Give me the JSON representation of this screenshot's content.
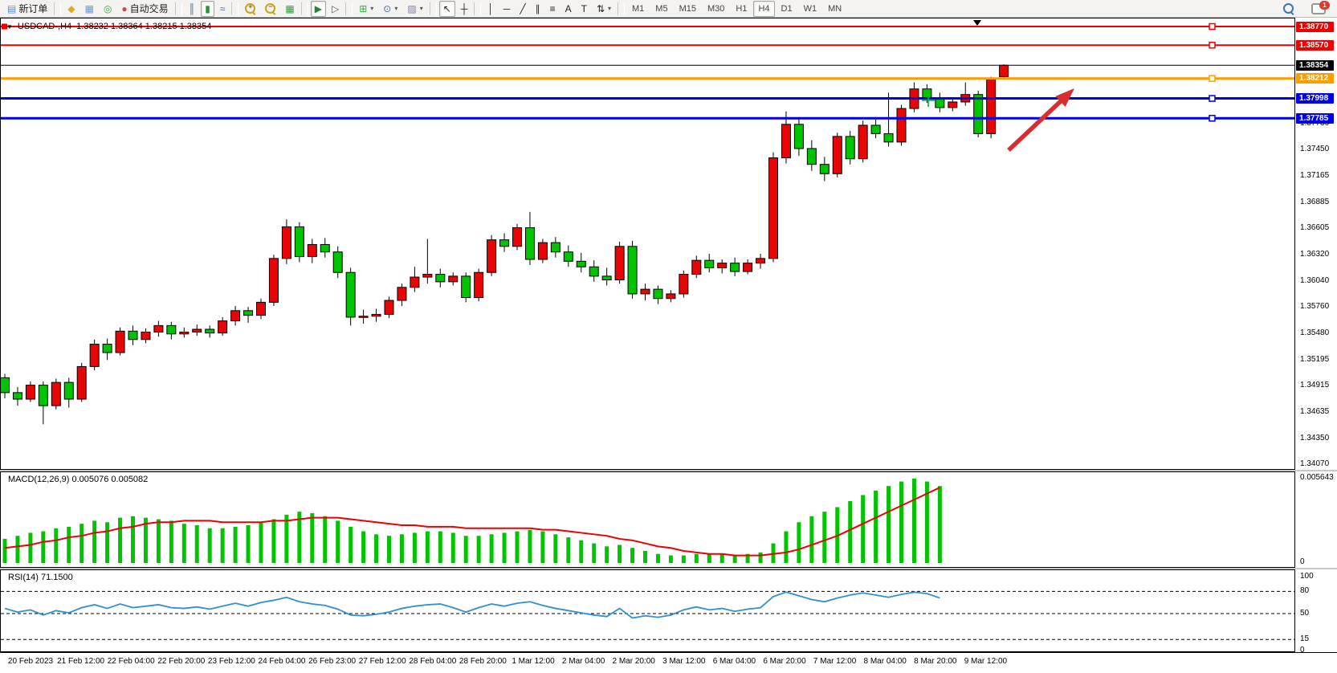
{
  "toolbar": {
    "groups": [
      [
        {
          "name": "new-order",
          "glyph": "▤",
          "color": "#5b8dc8",
          "label": "新订单"
        }
      ],
      [
        {
          "name": "market-watch",
          "glyph": "◆",
          "color": "#dcaa1e"
        },
        {
          "name": "data-window",
          "glyph": "▦",
          "color": "#6f9bd2"
        },
        {
          "name": "signals",
          "glyph": "◎",
          "color": "#2fae42"
        },
        {
          "name": "autotrading",
          "glyph": "●",
          "color": "#cf4a3c",
          "label": "自动交易"
        }
      ],
      [
        {
          "name": "bar-chart",
          "glyph": "║",
          "color": "#3a6ea8"
        },
        {
          "name": "candlestick-chart",
          "glyph": "▮",
          "color": "#2f8f3a",
          "active": true
        },
        {
          "name": "line-chart",
          "glyph": "≈",
          "color": "#3a6ea8"
        }
      ],
      [
        {
          "name": "zoom-in",
          "kind": "lens",
          "sign": "+"
        },
        {
          "name": "zoom-out",
          "kind": "lens",
          "sign": "−"
        },
        {
          "name": "tile-windows",
          "glyph": "▦",
          "color": "#2f9e3f"
        }
      ],
      [
        {
          "name": "auto-scroll",
          "glyph": "▶",
          "color": "#2f7d3a",
          "active": true
        },
        {
          "name": "chart-shift",
          "glyph": "▷",
          "color": "#555555"
        }
      ],
      [
        {
          "name": "add-indicator",
          "glyph": "⊞",
          "color": "#2fae42",
          "caret": true
        },
        {
          "name": "periods",
          "glyph": "⊙",
          "color": "#3a6ea8",
          "caret": true
        },
        {
          "name": "templates",
          "glyph": "▨",
          "color": "#8a77b0",
          "caret": true
        }
      ],
      [
        {
          "name": "cursor",
          "glyph": "↖",
          "color": "#222222",
          "active": true
        },
        {
          "name": "crosshair",
          "glyph": "┼",
          "color": "#222222"
        }
      ],
      [
        {
          "name": "vertical-line",
          "glyph": "│",
          "color": "#222222"
        },
        {
          "name": "horizontal-line",
          "glyph": "─",
          "color": "#222222"
        },
        {
          "name": "trendline",
          "glyph": "╱",
          "color": "#222222"
        },
        {
          "name": "equidistant-channel",
          "glyph": "∥",
          "color": "#222222"
        },
        {
          "name": "fibonacci",
          "glyph": "≡",
          "color": "#222222"
        },
        {
          "name": "text",
          "glyph": "A",
          "color": "#222222"
        },
        {
          "name": "text-label",
          "glyph": "T",
          "color": "#222222"
        },
        {
          "name": "arrows-tool",
          "glyph": "⇅",
          "color": "#222222",
          "caret": true
        }
      ]
    ],
    "timeframes": [
      "M1",
      "M5",
      "M15",
      "M30",
      "H1",
      "H4",
      "D1",
      "W1",
      "MN"
    ],
    "active_timeframe": "H4",
    "right": [
      {
        "name": "search",
        "kind": "search"
      },
      {
        "name": "notifications",
        "kind": "chat",
        "badge": "1"
      }
    ]
  },
  "chart_data": {
    "type": "candlestick",
    "symbol_title": "USDCAD-,H4",
    "ohlc_title": "1.38232 1.38364 1.38215 1.38354",
    "bull_color": "#e80505",
    "bear_color": "#00c400",
    "candles": [
      [
        1.35,
        1.3504,
        1.3478,
        1.3484
      ],
      [
        1.3484,
        1.349,
        1.347,
        1.3477
      ],
      [
        1.3477,
        1.3496,
        1.3474,
        1.3492
      ],
      [
        1.3492,
        1.3496,
        1.345,
        1.347
      ],
      [
        1.347,
        1.3499,
        1.3466,
        1.3495
      ],
      [
        1.3495,
        1.35,
        1.3468,
        1.3477
      ],
      [
        1.3477,
        1.3516,
        1.3474,
        1.3512
      ],
      [
        1.3512,
        1.3541,
        1.3508,
        1.3536
      ],
      [
        1.3536,
        1.3542,
        1.3519,
        1.3527
      ],
      [
        1.3527,
        1.3554,
        1.3524,
        1.355
      ],
      [
        1.355,
        1.3556,
        1.3535,
        1.3541
      ],
      [
        1.3541,
        1.3553,
        1.3537,
        1.3549
      ],
      [
        1.3549,
        1.3561,
        1.3544,
        1.3556
      ],
      [
        1.3556,
        1.356,
        1.3541,
        1.3547
      ],
      [
        1.3547,
        1.3554,
        1.3543,
        1.3549
      ],
      [
        1.3549,
        1.3557,
        1.3545,
        1.3552
      ],
      [
        1.3552,
        1.3556,
        1.3543,
        1.3548
      ],
      [
        1.3548,
        1.3565,
        1.3545,
        1.3561
      ],
      [
        1.3561,
        1.3577,
        1.3556,
        1.3572
      ],
      [
        1.3572,
        1.3576,
        1.3559,
        1.3567
      ],
      [
        1.3567,
        1.3585,
        1.3563,
        1.3581
      ],
      [
        1.3581,
        1.3632,
        1.3577,
        1.3628
      ],
      [
        1.3628,
        1.367,
        1.3622,
        1.3662
      ],
      [
        1.3662,
        1.3667,
        1.3624,
        1.363
      ],
      [
        1.363,
        1.3649,
        1.3623,
        1.3643
      ],
      [
        1.3643,
        1.365,
        1.3629,
        1.3635
      ],
      [
        1.3635,
        1.3641,
        1.3607,
        1.3613
      ],
      [
        1.3613,
        1.3618,
        1.3556,
        1.3565
      ],
      [
        1.3565,
        1.3573,
        1.3558,
        1.3566
      ],
      [
        1.3566,
        1.3574,
        1.356,
        1.3568
      ],
      [
        1.3568,
        1.3587,
        1.3564,
        1.3583
      ],
      [
        1.3583,
        1.3601,
        1.3577,
        1.3597
      ],
      [
        1.3597,
        1.3619,
        1.3592,
        1.3608
      ],
      [
        1.3608,
        1.3649,
        1.3601,
        1.3611
      ],
      [
        1.3611,
        1.3617,
        1.3597,
        1.3603
      ],
      [
        1.3603,
        1.3613,
        1.3599,
        1.3609
      ],
      [
        1.3609,
        1.3613,
        1.3581,
        1.3586
      ],
      [
        1.3586,
        1.3617,
        1.3582,
        1.3613
      ],
      [
        1.3613,
        1.3653,
        1.3609,
        1.3648
      ],
      [
        1.3648,
        1.3655,
        1.3635,
        1.3641
      ],
      [
        1.3641,
        1.3665,
        1.3637,
        1.3661
      ],
      [
        1.3661,
        1.3678,
        1.3621,
        1.3627
      ],
      [
        1.3627,
        1.3649,
        1.3623,
        1.3645
      ],
      [
        1.3645,
        1.3651,
        1.3629,
        1.3635
      ],
      [
        1.3635,
        1.3642,
        1.3619,
        1.3625
      ],
      [
        1.3625,
        1.3634,
        1.3613,
        1.3619
      ],
      [
        1.3619,
        1.3626,
        1.3603,
        1.3609
      ],
      [
        1.3609,
        1.3618,
        1.3599,
        1.3605
      ],
      [
        1.3605,
        1.3646,
        1.3601,
        1.3641
      ],
      [
        1.3641,
        1.3647,
        1.3585,
        1.359
      ],
      [
        1.359,
        1.3601,
        1.3583,
        1.3595
      ],
      [
        1.3595,
        1.3599,
        1.3579,
        1.3585
      ],
      [
        1.3585,
        1.3594,
        1.3581,
        1.359
      ],
      [
        1.359,
        1.3615,
        1.3586,
        1.3611
      ],
      [
        1.3611,
        1.3631,
        1.3607,
        1.3626
      ],
      [
        1.3626,
        1.3633,
        1.3613,
        1.3618
      ],
      [
        1.3618,
        1.3627,
        1.3612,
        1.3623
      ],
      [
        1.3623,
        1.3629,
        1.3609,
        1.3614
      ],
      [
        1.3614,
        1.3627,
        1.3611,
        1.3623
      ],
      [
        1.3623,
        1.3633,
        1.3617,
        1.3628
      ],
      [
        1.3628,
        1.3742,
        1.3624,
        1.3736
      ],
      [
        1.3736,
        1.3786,
        1.373,
        1.3772
      ],
      [
        1.3772,
        1.3778,
        1.3738,
        1.3746
      ],
      [
        1.3746,
        1.3755,
        1.3722,
        1.3729
      ],
      [
        1.3729,
        1.3737,
        1.3711,
        1.3719
      ],
      [
        1.3719,
        1.3763,
        1.3715,
        1.3759
      ],
      [
        1.3759,
        1.3765,
        1.3729,
        1.3735
      ],
      [
        1.3735,
        1.3776,
        1.3731,
        1.3771
      ],
      [
        1.3771,
        1.3777,
        1.3757,
        1.3762
      ],
      [
        1.3762,
        1.3806,
        1.3748,
        1.3753
      ],
      [
        1.3753,
        1.3793,
        1.3749,
        1.3789
      ],
      [
        1.3789,
        1.3817,
        1.3785,
        1.381
      ],
      [
        1.381,
        1.3815,
        1.3795,
        1.38
      ],
      [
        1.38,
        1.3806,
        1.3785,
        1.379
      ],
      [
        1.379,
        1.38,
        1.3786,
        1.3796
      ],
      [
        1.3796,
        1.3817,
        1.3792,
        1.3804
      ],
      [
        1.3804,
        1.3808,
        1.3758,
        1.3762
      ],
      [
        1.3762,
        1.3823,
        1.3757,
        1.382
      ],
      [
        1.38232,
        1.38364,
        1.38215,
        1.38354
      ]
    ],
    "price_lines": [
      {
        "price": "1.38770",
        "value": 1.3877,
        "color": "#ee0000",
        "width": 2
      },
      {
        "price": "1.38570",
        "value": 1.3857,
        "color": "#ee0000",
        "width": 2
      },
      {
        "price": "1.38354",
        "value": 1.38354,
        "color": "#000000",
        "width": 1
      },
      {
        "price": "1.38212",
        "value": 1.38212,
        "color": "#ff9c00",
        "width": 3
      },
      {
        "price": "1.37998",
        "value": 1.37998,
        "color": "#0000e8",
        "width": 3
      },
      {
        "price": "1.37785",
        "value": 1.37785,
        "color": "#0000e8",
        "width": 3
      }
    ],
    "y_ticks": [
      "1.37730",
      "1.37450",
      "1.37165",
      "1.36885",
      "1.36605",
      "1.36320",
      "1.36040",
      "1.35760",
      "1.35480",
      "1.35195",
      "1.34915",
      "1.34635",
      "1.34350",
      "1.34070"
    ],
    "x_labels": [
      "20 Feb 2023",
      "21 Feb 12:00",
      "22 Feb 04:00",
      "22 Feb 20:00",
      "23 Feb 12:00",
      "24 Feb 04:00",
      "26 Feb 23:00",
      "27 Feb 12:00",
      "28 Feb 04:00",
      "28 Feb 20:00",
      "1 Mar 12:00",
      "2 Mar 04:00",
      "2 Mar 20:00",
      "3 Mar 12:00",
      "6 Mar 04:00",
      "6 Mar 20:00",
      "7 Mar 12:00",
      "8 Mar 04:00",
      "8 Mar 20:00",
      "9 Mar 12:00"
    ],
    "indicators": {
      "macd": {
        "label": "MACD(12,26,9) 0.005076 0.005082",
        "axis_max": "0.005643",
        "axis_min": "0",
        "histogram_color": "#00c400",
        "signal_color": "#ee0000",
        "histogram": [
          0.0016,
          0.0018,
          0.002,
          0.0021,
          0.0023,
          0.0024,
          0.0026,
          0.0028,
          0.0027,
          0.003,
          0.0031,
          0.003,
          0.0029,
          0.0028,
          0.0026,
          0.0025,
          0.0023,
          0.0023,
          0.0024,
          0.0025,
          0.0027,
          0.0029,
          0.0032,
          0.0034,
          0.0033,
          0.0031,
          0.0028,
          0.0024,
          0.0021,
          0.0019,
          0.0018,
          0.0019,
          0.002,
          0.0021,
          0.0021,
          0.002,
          0.0018,
          0.0018,
          0.0019,
          0.002,
          0.0021,
          0.0022,
          0.0021,
          0.0019,
          0.0017,
          0.0015,
          0.0013,
          0.0011,
          0.0012,
          0.001,
          0.0008,
          0.0006,
          0.0005,
          0.0005,
          0.0006,
          0.0006,
          0.0006,
          0.0005,
          0.0006,
          0.0007,
          0.0013,
          0.0021,
          0.0027,
          0.0031,
          0.0034,
          0.0037,
          0.0041,
          0.0045,
          0.0048,
          0.0051,
          0.0054,
          0.0056,
          0.0054,
          0.0051
        ],
        "signal": [
          0.001,
          0.0011,
          0.0012,
          0.0014,
          0.0015,
          0.0017,
          0.0018,
          0.002,
          0.0021,
          0.0023,
          0.0024,
          0.0026,
          0.0027,
          0.0027,
          0.0028,
          0.0028,
          0.0028,
          0.0027,
          0.0027,
          0.0027,
          0.0027,
          0.0028,
          0.0028,
          0.0029,
          0.003,
          0.003,
          0.003,
          0.0029,
          0.0028,
          0.0027,
          0.0026,
          0.0025,
          0.0025,
          0.0024,
          0.0024,
          0.0024,
          0.0023,
          0.0023,
          0.0023,
          0.0023,
          0.0023,
          0.0023,
          0.0022,
          0.0022,
          0.0021,
          0.002,
          0.0019,
          0.0018,
          0.0016,
          0.0015,
          0.0013,
          0.0011,
          0.001,
          0.0008,
          0.0007,
          0.0006,
          0.0006,
          0.0005,
          0.0005,
          0.0005,
          0.0006,
          0.0007,
          0.0009,
          0.0012,
          0.0015,
          0.0018,
          0.0022,
          0.0026,
          0.003,
          0.0034,
          0.0038,
          0.0042,
          0.0046,
          0.005
        ]
      },
      "rsi": {
        "label": "RSI(14) 71.1500",
        "line_color": "#2e8fd4",
        "axis": [
          "100",
          "80",
          "50",
          "15",
          "0"
        ],
        "dashed_levels": [
          80,
          50,
          15
        ],
        "values": [
          57,
          52,
          55,
          48,
          54,
          51,
          58,
          62,
          57,
          63,
          58,
          60,
          62,
          58,
          57,
          59,
          56,
          60,
          64,
          60,
          65,
          68,
          72,
          66,
          63,
          61,
          56,
          48,
          47,
          49,
          52,
          57,
          60,
          62,
          63,
          58,
          52,
          58,
          63,
          60,
          64,
          66,
          61,
          57,
          54,
          51,
          48,
          46,
          57,
          44,
          47,
          45,
          48,
          55,
          59,
          55,
          57,
          53,
          56,
          58,
          73,
          79,
          74,
          69,
          66,
          71,
          75,
          78,
          75,
          72,
          76,
          79,
          77,
          71.15
        ]
      }
    },
    "annotations": {
      "arrow": {
        "color": "#d62d33",
        "from_xy": [
          1256,
          165
        ],
        "to_xy": [
          1338,
          88
        ]
      },
      "cross_marker": {
        "color": "#00b050",
        "xy": [
          1156,
          103
        ]
      },
      "shift_marker": {
        "color": "#000000",
        "xy": [
          1217,
          3
        ]
      }
    }
  }
}
